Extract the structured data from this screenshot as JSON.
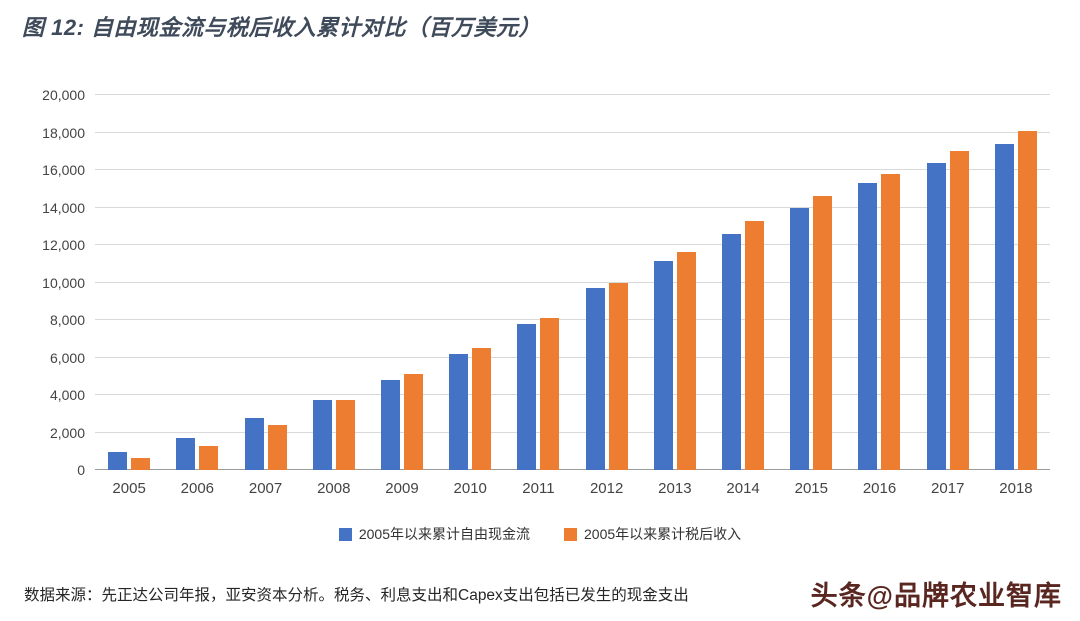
{
  "title": "图 12: 自由现金流与税后收入累计对比（百万美元）",
  "footer": {
    "source_text": "数据来源：先正达公司年报，亚安资本分析。税务、利息支出和Capex支出包括已发生的现金支出",
    "watermark": "头条@品牌农业智库"
  },
  "chart_data": {
    "type": "bar",
    "title": "图 12: 自由现金流与税后收入累计对比（百万美元）",
    "categories": [
      "2005",
      "2006",
      "2007",
      "2008",
      "2009",
      "2010",
      "2011",
      "2012",
      "2013",
      "2014",
      "2015",
      "2016",
      "2017",
      "2018"
    ],
    "series": [
      {
        "name": "2005年以来累计自由现金流",
        "color": "#4472C4",
        "values": [
          950,
          1700,
          2750,
          3750,
          4800,
          6200,
          7800,
          9700,
          11150,
          12600,
          13950,
          15300,
          16400,
          17400
        ]
      },
      {
        "name": "2005年以来累计税后收入",
        "color": "#ED7D31",
        "values": [
          650,
          1300,
          2400,
          3750,
          5100,
          6500,
          8100,
          10000,
          11650,
          13300,
          14600,
          15800,
          17000,
          18100
        ]
      }
    ],
    "xlabel": "",
    "ylabel": "",
    "ylim": [
      0,
      20000
    ],
    "ytick_step": 2000,
    "grid": true,
    "legend_position": "bottom"
  }
}
